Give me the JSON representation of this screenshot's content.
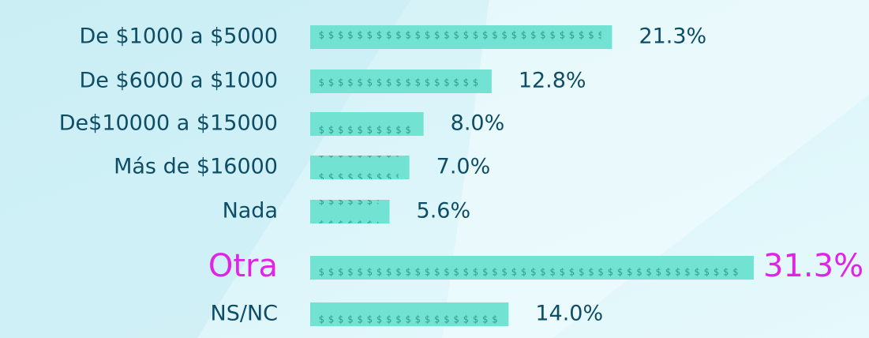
{
  "chart_data": {
    "type": "hbar",
    "categories": [
      "De $1000 a $5000",
      "De $6000 a $1000",
      "De$10000 a $15000",
      "Más de $16000",
      "Nada",
      "Otra",
      "NS/NC"
    ],
    "values": [
      21.3,
      12.8,
      8.0,
      7.0,
      5.6,
      31.3,
      14.0
    ],
    "value_labels": [
      "21.3%",
      "12.8%",
      "8.0%",
      "7.0%",
      "5.6%",
      "31.3%",
      "14.0%"
    ],
    "color": "#72e3d2",
    "bar_symbol": "$",
    "symbol_color": "#2f9a88",
    "label_color": "#0e4d66",
    "highlight": "Otra",
    "highlight_color": "#e024e6"
  }
}
